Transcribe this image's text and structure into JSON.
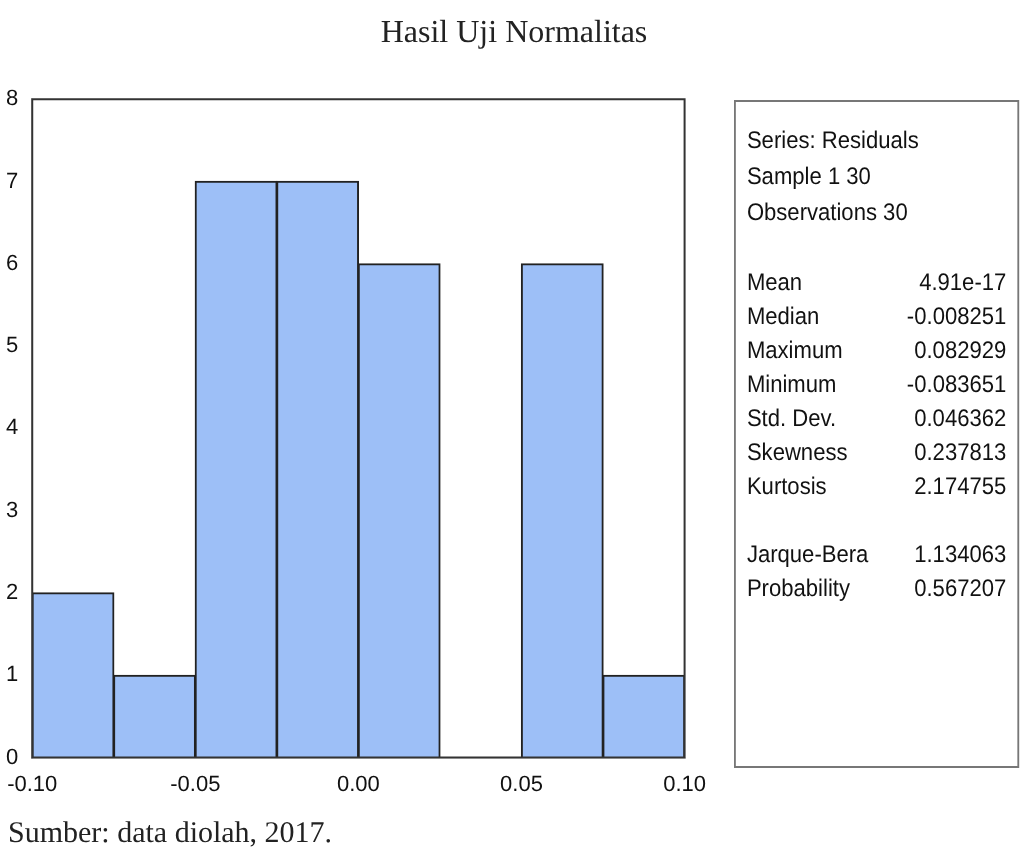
{
  "chart_data": [
    {
      "type": "histogram",
      "title": "Hasil Uji Normalitas",
      "bins": [
        -0.1,
        -0.075,
        -0.05,
        -0.025,
        0,
        0.025,
        0.05,
        0.075,
        0.1
      ],
      "values": [
        2,
        1,
        7,
        7,
        6,
        0,
        6,
        1
      ],
      "color": "#9dbff7",
      "xlim": [
        -0.1,
        0.1
      ],
      "xticks": [
        {
          "value": -0.1,
          "label": "-0.10"
        },
        {
          "value": -0.05,
          "label": "-0.05"
        },
        {
          "value": 0,
          "label": "0.00"
        },
        {
          "value": 0.05,
          "label": "0.05"
        },
        {
          "value": 0.1,
          "label": "0.10"
        }
      ],
      "ylim": [
        0,
        8
      ],
      "yticks": [
        0,
        1,
        2,
        3,
        4,
        5,
        6,
        7,
        8
      ],
      "grid": false,
      "legend": false,
      "annotations": [
        "Sumber: data diolah, 2017."
      ]
    },
    {
      "type": "other",
      "title": "Series: Residuals",
      "annotations": [
        "Sample 1 30",
        "Observations 30"
      ],
      "categories": [
        "Mean",
        "Median",
        "Maximum",
        "Minimum",
        "Std. Dev.",
        "Skewness",
        "Kurtosis",
        null,
        "Jarque-Bera",
        "Probability"
      ],
      "value_labels": [
        "4.91e-17",
        "-0.008251",
        "0.082929",
        "-0.083651",
        "0.046362",
        "0.237813",
        "2.174755",
        null,
        "1.134063",
        "0.567207"
      ]
    }
  ]
}
